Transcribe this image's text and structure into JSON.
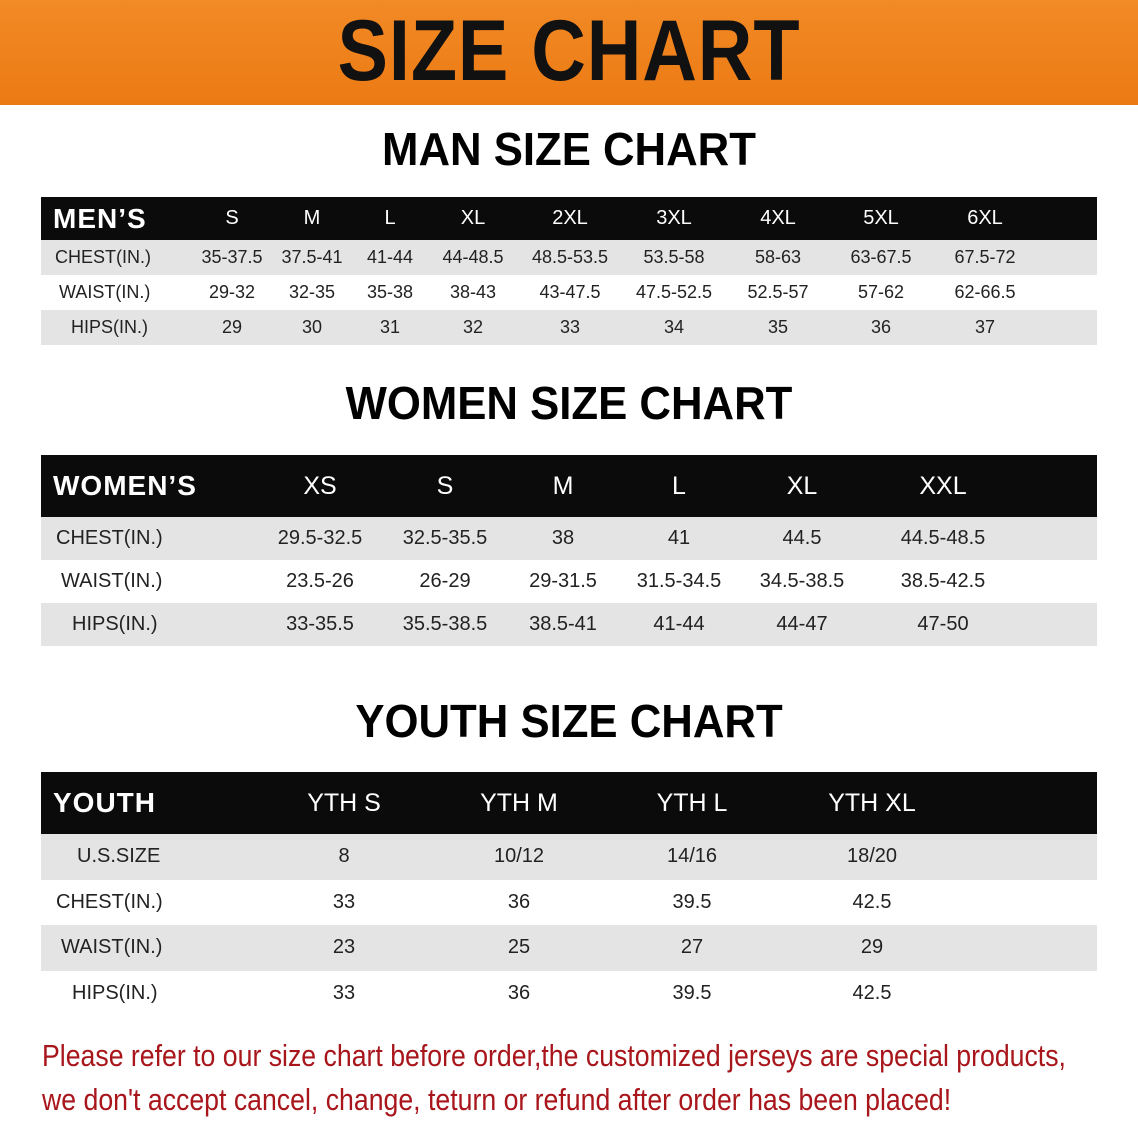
{
  "banner_title": "SIZE CHART",
  "men": {
    "title": "MAN SIZE CHART",
    "header_label": "MEN’S",
    "sizes": [
      "S",
      "M",
      "L",
      "XL",
      "2XL",
      "3XL",
      "4XL",
      "5XL",
      "6XL"
    ],
    "rows": [
      {
        "label": "CHEST(IN.)",
        "values": [
          "35-37.5",
          "37.5-41",
          "41-44",
          "44-48.5",
          "48.5-53.5",
          "53.5-58",
          "58-63",
          "63-67.5",
          "67.5-72"
        ]
      },
      {
        "label": "WAIST(IN.)",
        "values": [
          "29-32",
          "32-35",
          "35-38",
          "38-43",
          "43-47.5",
          "47.5-52.5",
          "52.5-57",
          "57-62",
          "62-66.5"
        ]
      },
      {
        "label": "HIPS(IN.)",
        "values": [
          "29",
          "30",
          "31",
          "32",
          "33",
          "34",
          "35",
          "36",
          "37"
        ]
      }
    ]
  },
  "women": {
    "title": "WOMEN SIZE CHART",
    "header_label": "WOMEN’S",
    "sizes": [
      "XS",
      "S",
      "M",
      "L",
      "XL",
      "XXL"
    ],
    "rows": [
      {
        "label": "CHEST(IN.)",
        "values": [
          "29.5-32.5",
          "32.5-35.5",
          "38",
          "41",
          "44.5",
          "44.5-48.5"
        ]
      },
      {
        "label": "WAIST(IN.)",
        "values": [
          "23.5-26",
          "26-29",
          "29-31.5",
          "31.5-34.5",
          "34.5-38.5",
          "38.5-42.5"
        ]
      },
      {
        "label": "HIPS(IN.)",
        "values": [
          "33-35.5",
          "35.5-38.5",
          "38.5-41",
          "41-44",
          "44-47",
          "47-50"
        ]
      }
    ]
  },
  "youth": {
    "title": "YOUTH SIZE CHART",
    "header_label": "YOUTH",
    "sizes": [
      "YTH S",
      "YTH M",
      "YTH L",
      "YTH XL"
    ],
    "rows": [
      {
        "label": "U.S.SIZE",
        "values": [
          "8",
          "10/12",
          "14/16",
          "18/20"
        ]
      },
      {
        "label": "CHEST(IN.)",
        "values": [
          "33",
          "36",
          "39.5",
          "42.5"
        ]
      },
      {
        "label": "WAIST(IN.)",
        "values": [
          "23",
          "25",
          "27",
          "29"
        ]
      },
      {
        "label": "HIPS(IN.)",
        "values": [
          "33",
          "36",
          "39.5",
          "42.5"
        ]
      }
    ]
  },
  "notice": {
    "line1": "Please refer to our size chart before order,the customized jerseys are special products,",
    "line2": "we don't accept cancel, change, teturn or refund after order has been placed!"
  },
  "colors": {
    "banner": "#ef8220",
    "header_row": "#0b0b0b",
    "row_alt": "#e4e4e4",
    "notice": "#a8161c"
  }
}
